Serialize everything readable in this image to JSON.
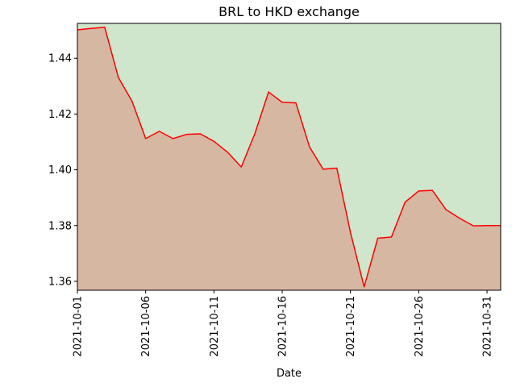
{
  "chart_data": {
    "type": "area",
    "title": "BRL to HKD exchange",
    "xlabel": "Date",
    "ylabel": "",
    "grid": false,
    "legend": "none",
    "xlim": [
      "2021-10-01",
      "2021-11-01"
    ],
    "ylim": [
      1.3568,
      1.4525
    ],
    "x_ticks": [
      "2021-10-01",
      "2021-10-06",
      "2021-10-11",
      "2021-10-16",
      "2021-10-21",
      "2021-10-26",
      "2021-10-31"
    ],
    "y_ticks": [
      1.36,
      1.38,
      1.4,
      1.42,
      1.44
    ],
    "y_tick_labels": [
      "1.36",
      "1.38",
      "1.40",
      "1.42",
      "1.44"
    ],
    "series": [
      {
        "x": [
          "2021-10-01",
          "2021-10-02",
          "2021-10-03",
          "2021-10-04",
          "2021-10-05",
          "2021-10-06",
          "2021-10-07",
          "2021-10-08",
          "2021-10-09",
          "2021-10-10",
          "2021-10-11",
          "2021-10-12",
          "2021-10-13",
          "2021-10-14",
          "2021-10-15",
          "2021-10-16",
          "2021-10-17",
          "2021-10-18",
          "2021-10-19",
          "2021-10-20",
          "2021-10-21",
          "2021-10-22",
          "2021-10-23",
          "2021-10-24",
          "2021-10-25",
          "2021-10-26",
          "2021-10-27",
          "2021-10-28",
          "2021-10-29",
          "2021-10-30",
          "2021-10-31",
          "2021-11-01"
        ],
        "values": [
          1.4502,
          1.4507,
          1.4511,
          1.4331,
          1.4246,
          1.4112,
          1.4138,
          1.4112,
          1.4127,
          1.4129,
          1.4102,
          1.4063,
          1.401,
          1.413,
          1.4279,
          1.4242,
          1.424,
          1.4082,
          1.4002,
          1.4006,
          1.3775,
          1.358,
          1.3755,
          1.3759,
          1.3884,
          1.3924,
          1.3926,
          1.3857,
          1.3826,
          1.3799,
          1.38,
          1.38
        ]
      }
    ],
    "colors": {
      "line": "#ff0000",
      "below_fill": "#d6b7a2",
      "above_fill": "#cfe5cc",
      "axes": "#000000"
    }
  }
}
